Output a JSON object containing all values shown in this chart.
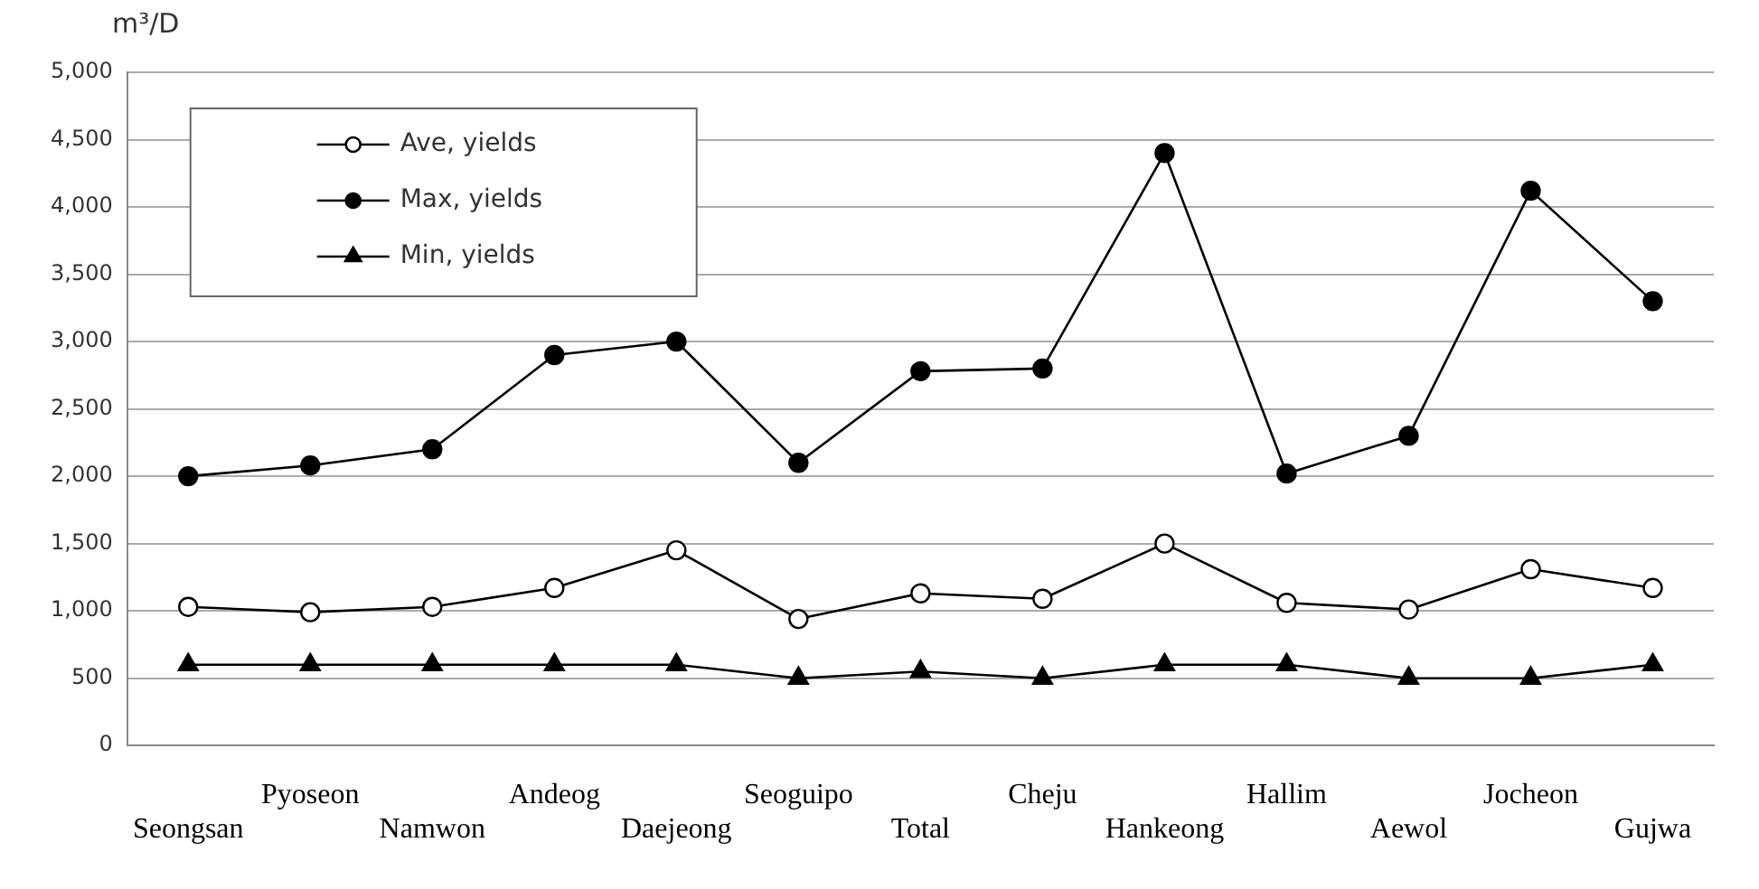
{
  "chart_data": {
    "type": "line",
    "ylabel": "m³/D",
    "categories": [
      "Seongsan",
      "Pyoseon",
      "Namwon",
      "Andeog",
      "Daejeong",
      "Seoguipo",
      "Total",
      "Cheju",
      "Hankeong",
      "Hallim",
      "Aewol",
      "Jocheon",
      "Gujwa"
    ],
    "series": [
      {
        "name": "Ave, yields",
        "color": "#000000",
        "marker": "circle",
        "values": [
          1030,
          990,
          1030,
          1170,
          1450,
          940,
          1130,
          1090,
          1500,
          1060,
          1010,
          1310,
          1170
        ]
      },
      {
        "name": "Max, yields",
        "color": "#000000",
        "marker": "circle",
        "values": [
          2000,
          2080,
          2200,
          2900,
          3000,
          2100,
          2780,
          2800,
          4400,
          2020,
          2300,
          4120,
          3300
        ]
      },
      {
        "name": "Min, yields",
        "color": "#000000",
        "marker": "triangle",
        "values": [
          600,
          600,
          600,
          600,
          600,
          500,
          550,
          500,
          600,
          600,
          500,
          500,
          600
        ]
      }
    ],
    "ylim": [
      0,
      5000
    ],
    "yticks": [
      {
        "value": 0,
        "label": "0"
      },
      {
        "value": 500,
        "label": "500"
      },
      {
        "value": 1000,
        "label": "1,000"
      },
      {
        "value": 1500,
        "label": "1,500"
      },
      {
        "value": 2000,
        "label": "2,000"
      },
      {
        "value": 2500,
        "label": "2,500"
      },
      {
        "value": 3000,
        "label": "3,000"
      },
      {
        "value": 3500,
        "label": "3,500"
      },
      {
        "value": 4000,
        "label": "4,000"
      },
      {
        "value": 4500,
        "label": "4,500"
      },
      {
        "value": 5000,
        "label": "5,000"
      }
    ],
    "grid": "y",
    "legend": "top left",
    "line_style": "solid"
  }
}
